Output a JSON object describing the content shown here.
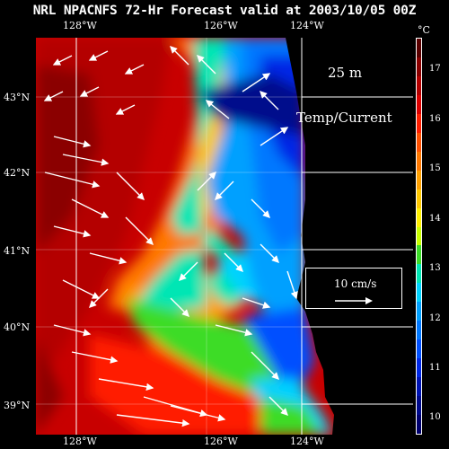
{
  "title": "NRL NPACNFS 72-Hr Forecast valid at 2003/10/05 00Z",
  "top_lon_labels": [
    "128°W",
    "126°W",
    "124°W"
  ],
  "bottom_lon_labels": [
    "128°W",
    "126°W",
    "124°W"
  ],
  "lat_labels": [
    "43°N",
    "42°N",
    "41°N",
    "40°N",
    "39°N"
  ],
  "colorbar": {
    "unit": "°C",
    "labels": [
      "17",
      "16",
      "15",
      "14",
      "13",
      "12",
      "11",
      "10"
    ],
    "colors": [
      "#5a0000",
      "#8b0000",
      "#b40000",
      "#dc0000",
      "#ff1e00",
      "#ff5000",
      "#ff7800",
      "#ffa000",
      "#ffc800",
      "#fff000",
      "#c8ff00",
      "#3cdc28",
      "#00e6b4",
      "#00d2ff",
      "#00a0ff",
      "#0078ff",
      "#0050ff",
      "#0028e6",
      "#0014b4",
      "#000a8c",
      "#00006e"
    ]
  },
  "depth_label": "25 m",
  "field_label": "Temp/Current",
  "vector_legend": {
    "label": "10 cm/s"
  },
  "colors": {
    "background": "#000000",
    "land": "#000000",
    "arrows": "#ffffff"
  }
}
